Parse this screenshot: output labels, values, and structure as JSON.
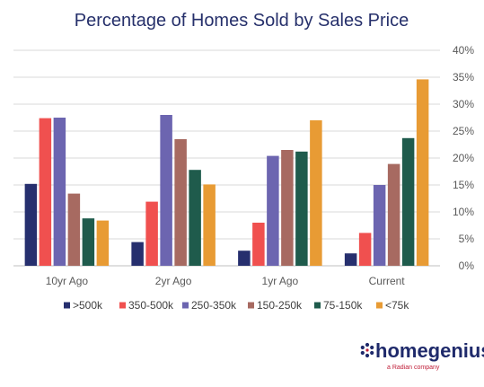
{
  "chart_data": {
    "type": "bar",
    "title": "Percentage of Homes Sold by Sales Price",
    "categories": [
      "10yr Ago",
      "2yr Ago",
      "1yr Ago",
      "Current"
    ],
    "ylim": [
      0,
      40
    ],
    "y_ticks": [
      {
        "value": 0,
        "label": "0%"
      },
      {
        "value": 5,
        "label": "5%"
      },
      {
        "value": 10,
        "label": "10%"
      },
      {
        "value": 15,
        "label": "15%"
      },
      {
        "value": 20,
        "label": "20%"
      },
      {
        "value": 25,
        "label": "25%"
      },
      {
        "value": 30,
        "label": "30%"
      },
      {
        "value": 35,
        "label": "35%"
      },
      {
        "value": 40,
        "label": "40%"
      }
    ],
    "y_axis_position": "right",
    "grid": true,
    "legend_position": "bottom",
    "series": [
      {
        "name": ">500k",
        "color": "#262f6e",
        "values": [
          15.2,
          4.4,
          2.8,
          2.3
        ]
      },
      {
        "name": "350-500k",
        "color": "#f0504f",
        "values": [
          27.4,
          11.9,
          8.0,
          6.1
        ]
      },
      {
        "name": "250-350k",
        "color": "#6c65b0",
        "values": [
          27.5,
          28.0,
          20.4,
          15.0
        ]
      },
      {
        "name": "150-250k",
        "color": "#a76a61",
        "values": [
          13.4,
          23.5,
          21.5,
          18.9
        ]
      },
      {
        "name": "75-150k",
        "color": "#1f5b4c",
        "values": [
          8.8,
          17.8,
          21.2,
          23.7
        ]
      },
      {
        "name": "<75k",
        "color": "#e89b34",
        "values": [
          8.4,
          15.1,
          27.0,
          34.6
        ]
      },
      {
        "name": "",
        "color": "#f4a79c",
        "values": [
          0,
          0,
          0,
          0
        ]
      }
    ]
  },
  "brand": {
    "name": "homegenius",
    "tagline": "a Radian company",
    "mark_color": "#1f2a6b",
    "accent_color": "#c0203a"
  }
}
